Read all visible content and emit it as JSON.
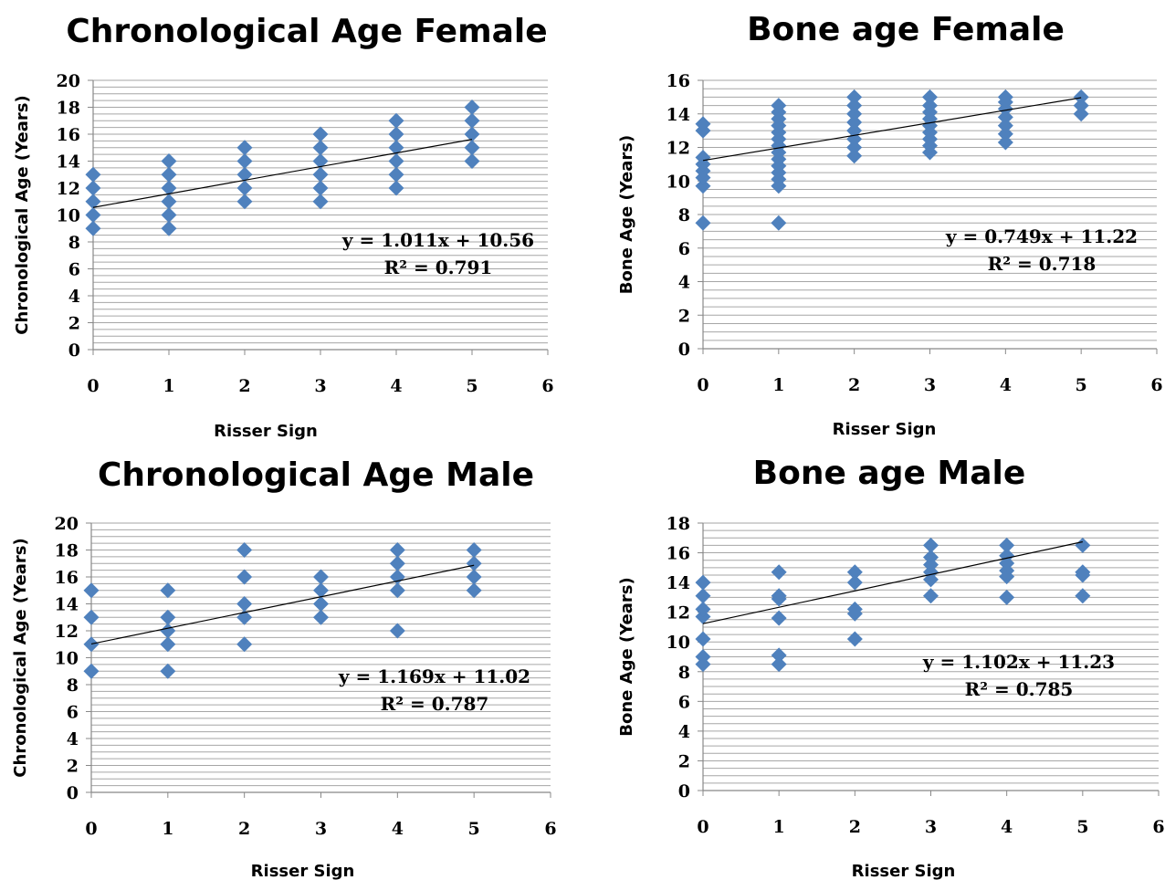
{
  "chart_data": [
    {
      "type": "scatter",
      "title": "Chronological Age Female",
      "xlabel": "Risser Sign",
      "ylabel": "Chronological Age (Years)",
      "xlim": [
        0,
        6
      ],
      "ylim": [
        0,
        20
      ],
      "x_ticks": [
        0,
        1,
        2,
        3,
        4,
        5,
        6
      ],
      "y_ticks": [
        0,
        2,
        4,
        6,
        8,
        10,
        12,
        14,
        16,
        18,
        20
      ],
      "grid": true,
      "marker_color": "#4F81BD",
      "points": [
        [
          0,
          9
        ],
        [
          0,
          10
        ],
        [
          0,
          11
        ],
        [
          0,
          12
        ],
        [
          0,
          13
        ],
        [
          1,
          9
        ],
        [
          1,
          10
        ],
        [
          1,
          11
        ],
        [
          1,
          12
        ],
        [
          1,
          13
        ],
        [
          1,
          14
        ],
        [
          2,
          11
        ],
        [
          2,
          12
        ],
        [
          2,
          13
        ],
        [
          2,
          14
        ],
        [
          2,
          15
        ],
        [
          3,
          11
        ],
        [
          3,
          12
        ],
        [
          3,
          13
        ],
        [
          3,
          14
        ],
        [
          3,
          15
        ],
        [
          3,
          16
        ],
        [
          4,
          12
        ],
        [
          4,
          13
        ],
        [
          4,
          14
        ],
        [
          4,
          15
        ],
        [
          4,
          16
        ],
        [
          4,
          17
        ],
        [
          5,
          14
        ],
        [
          5,
          15
        ],
        [
          5,
          16
        ],
        [
          5,
          17
        ],
        [
          5,
          18
        ]
      ],
      "trendline": {
        "slope": 1.011,
        "intercept": 10.56,
        "equation": "y = 1.011x + 10.56",
        "r2": "R² = 0.791"
      }
    },
    {
      "type": "scatter",
      "title": "Bone age Female",
      "xlabel": "Risser Sign",
      "ylabel": "Bone Age (Years)",
      "xlim": [
        0,
        6
      ],
      "ylim": [
        0,
        16
      ],
      "x_ticks": [
        0,
        1,
        2,
        3,
        4,
        5,
        6
      ],
      "y_ticks": [
        0,
        2,
        4,
        6,
        8,
        10,
        12,
        14,
        16
      ],
      "grid": true,
      "marker_color": "#4F81BD",
      "points": [
        [
          0,
          7.5
        ],
        [
          0,
          9.7
        ],
        [
          0,
          10.2
        ],
        [
          0,
          10.6
        ],
        [
          0,
          11
        ],
        [
          0,
          11.4
        ],
        [
          0,
          13
        ],
        [
          0,
          13.4
        ],
        [
          1,
          7.5
        ],
        [
          1,
          9.7
        ],
        [
          1,
          10.1
        ],
        [
          1,
          10.5
        ],
        [
          1,
          10.9
        ],
        [
          1,
          11.3
        ],
        [
          1,
          11.7
        ],
        [
          1,
          12.1
        ],
        [
          1,
          12.5
        ],
        [
          1,
          12.9
        ],
        [
          1,
          13.3
        ],
        [
          1,
          13.7
        ],
        [
          1,
          14.1
        ],
        [
          1,
          14.5
        ],
        [
          2,
          11.5
        ],
        [
          2,
          12
        ],
        [
          2,
          12.5
        ],
        [
          2,
          13
        ],
        [
          2,
          13.5
        ],
        [
          2,
          14
        ],
        [
          2,
          14.5
        ],
        [
          2,
          15
        ],
        [
          3,
          11.7
        ],
        [
          3,
          12.1
        ],
        [
          3,
          12.5
        ],
        [
          3,
          12.9
        ],
        [
          3,
          13.3
        ],
        [
          3,
          13.7
        ],
        [
          3,
          14.1
        ],
        [
          3,
          14.5
        ],
        [
          3,
          15
        ],
        [
          4,
          12.3
        ],
        [
          4,
          12.8
        ],
        [
          4,
          13.3
        ],
        [
          4,
          13.8
        ],
        [
          4,
          14.3
        ],
        [
          4,
          14.7
        ],
        [
          4,
          15
        ],
        [
          5,
          14
        ],
        [
          5,
          14.5
        ],
        [
          5,
          15
        ]
      ],
      "trendline": {
        "slope": 0.749,
        "intercept": 11.22,
        "equation": "y = 0.749x + 11.22",
        "r2": "R² = 0.718"
      }
    },
    {
      "type": "scatter",
      "title": "Chronological Age Male",
      "xlabel": "Risser Sign",
      "ylabel": "Chronological Age (Years)",
      "xlim": [
        0,
        6
      ],
      "ylim": [
        0,
        20
      ],
      "x_ticks": [
        0,
        1,
        2,
        3,
        4,
        5,
        6
      ],
      "y_ticks": [
        0,
        2,
        4,
        6,
        8,
        10,
        12,
        14,
        16,
        18,
        20
      ],
      "grid": true,
      "marker_color": "#4F81BD",
      "points": [
        [
          0,
          9
        ],
        [
          0,
          11
        ],
        [
          0,
          13
        ],
        [
          0,
          15
        ],
        [
          1,
          9
        ],
        [
          1,
          11
        ],
        [
          1,
          12
        ],
        [
          1,
          13
        ],
        [
          1,
          15
        ],
        [
          2,
          11
        ],
        [
          2,
          13
        ],
        [
          2,
          14
        ],
        [
          2,
          16
        ],
        [
          2,
          18
        ],
        [
          3,
          13
        ],
        [
          3,
          14
        ],
        [
          3,
          15
        ],
        [
          3,
          16
        ],
        [
          4,
          12
        ],
        [
          4,
          15
        ],
        [
          4,
          16
        ],
        [
          4,
          17
        ],
        [
          4,
          18
        ],
        [
          5,
          15
        ],
        [
          5,
          16
        ],
        [
          5,
          17
        ],
        [
          5,
          18
        ]
      ],
      "trendline": {
        "slope": 1.169,
        "intercept": 11.02,
        "equation": "y = 1.169x + 11.02",
        "r2": "R² = 0.787"
      }
    },
    {
      "type": "scatter",
      "title": "Bone age Male",
      "xlabel": "Risser Sign",
      "ylabel": "Bone Age (Years)",
      "xlim": [
        0,
        6
      ],
      "ylim": [
        0,
        18
      ],
      "x_ticks": [
        0,
        1,
        2,
        3,
        4,
        5,
        6
      ],
      "y_ticks": [
        0,
        2,
        4,
        6,
        8,
        10,
        12,
        14,
        16,
        18
      ],
      "grid": true,
      "marker_color": "#4F81BD",
      "points": [
        [
          0,
          8.5
        ],
        [
          0,
          9
        ],
        [
          0,
          10.2
        ],
        [
          0,
          11.7
        ],
        [
          0,
          12.2
        ],
        [
          0,
          13.1
        ],
        [
          0,
          14
        ],
        [
          1,
          8.5
        ],
        [
          1,
          9.1
        ],
        [
          1,
          11.6
        ],
        [
          1,
          12.9
        ],
        [
          1,
          13.1
        ],
        [
          1,
          14.7
        ],
        [
          2,
          10.2
        ],
        [
          2,
          11.9
        ],
        [
          2,
          12.2
        ],
        [
          2,
          14
        ],
        [
          2,
          14.7
        ],
        [
          3,
          13.1
        ],
        [
          3,
          14.2
        ],
        [
          3,
          14.7
        ],
        [
          3,
          15.2
        ],
        [
          3,
          15.7
        ],
        [
          3,
          16.5
        ],
        [
          4,
          13
        ],
        [
          4,
          14.4
        ],
        [
          4,
          14.8
        ],
        [
          4,
          15.3
        ],
        [
          4,
          15.8
        ],
        [
          4,
          16.5
        ],
        [
          5,
          13.1
        ],
        [
          5,
          14.5
        ],
        [
          5,
          14.7
        ],
        [
          5,
          16.5
        ]
      ],
      "trendline": {
        "slope": 1.102,
        "intercept": 11.23,
        "equation": "y = 1.102x + 11.23",
        "r2": "R² = 0.785"
      }
    }
  ]
}
